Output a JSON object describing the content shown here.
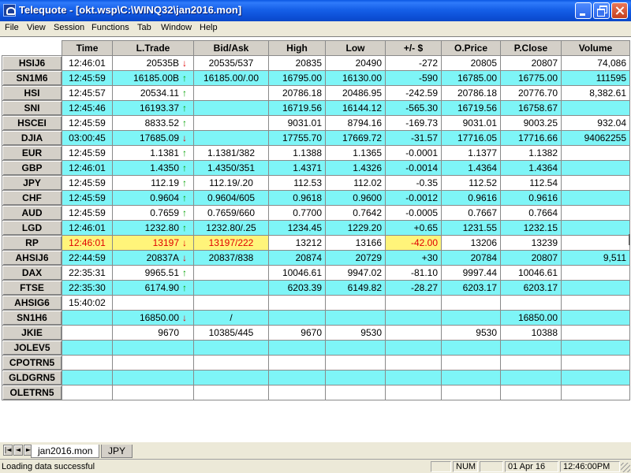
{
  "window": {
    "title": "Telequote - [okt.wsp\\C:\\WINQ32\\jan2016.mon]"
  },
  "menu": [
    "File",
    "View",
    "Session",
    "Functions",
    "Tab",
    "Window",
    "Help"
  ],
  "table": {
    "headers": [
      "Time",
      "L.Trade",
      "Bid/Ask",
      "High",
      "Low",
      "+/- $",
      "O.Price",
      "P.Close",
      "Volume"
    ],
    "rows": [
      {
        "symbol": "HSIJ6",
        "time": "12:46:01",
        "last": "20535B",
        "arrow": "down",
        "bidask": "20535/537",
        "high": "20835",
        "low": "20490",
        "change": "-272",
        "open": "20805",
        "pclose": "20807",
        "volume": "74,086",
        "bg": "white"
      },
      {
        "symbol": "SN1M6",
        "time": "12:45:59",
        "last": "16185.00B",
        "arrow": "up",
        "bidask": "16185.00/.00",
        "high": "16795.00",
        "low": "16130.00",
        "change": "-590",
        "open": "16785.00",
        "pclose": "16775.00",
        "volume": "111595",
        "bg": "cyan"
      },
      {
        "symbol": "HSI",
        "time": "12:45:57",
        "last": "20534.11",
        "arrow": "up",
        "bidask": "",
        "high": "20786.18",
        "low": "20486.95",
        "change": "-242.59",
        "open": "20786.18",
        "pclose": "20776.70",
        "volume": "8,382.61",
        "bg": "white"
      },
      {
        "symbol": "SNI",
        "time": "12:45:46",
        "last": "16193.37",
        "arrow": "up",
        "bidask": "",
        "high": "16719.56",
        "low": "16144.12",
        "change": "-565.30",
        "open": "16719.56",
        "pclose": "16758.67",
        "volume": "",
        "bg": "cyan"
      },
      {
        "symbol": "HSCEI",
        "time": "12:45:59",
        "last": "8833.52",
        "arrow": "up",
        "bidask": "",
        "high": "9031.01",
        "low": "8794.16",
        "change": "-169.73",
        "open": "9031.01",
        "pclose": "9003.25",
        "volume": "932.04",
        "bg": "white"
      },
      {
        "symbol": "DJIA",
        "time": "03:00:45",
        "last": "17685.09",
        "arrow": "down",
        "bidask": "",
        "high": "17755.70",
        "low": "17669.72",
        "change": "-31.57",
        "open": "17716.05",
        "pclose": "17716.66",
        "volume": "94062255",
        "bg": "cyan"
      },
      {
        "symbol": "EUR",
        "time": "12:45:59",
        "last": "1.1381",
        "arrow": "up",
        "bidask": "1.1381/382",
        "high": "1.1388",
        "low": "1.1365",
        "change": "-0.0001",
        "open": "1.1377",
        "pclose": "1.1382",
        "volume": "",
        "bg": "white"
      },
      {
        "symbol": "GBP",
        "time": "12:46:01",
        "last": "1.4350",
        "arrow": "up",
        "bidask": "1.4350/351",
        "high": "1.4371",
        "low": "1.4326",
        "change": "-0.0014",
        "open": "1.4364",
        "pclose": "1.4364",
        "volume": "",
        "bg": "cyan"
      },
      {
        "symbol": "JPY",
        "time": "12:45:59",
        "last": "112.19",
        "arrow": "up",
        "bidask": "112.19/.20",
        "high": "112.53",
        "low": "112.02",
        "change": "-0.35",
        "open": "112.52",
        "pclose": "112.54",
        "volume": "",
        "bg": "white"
      },
      {
        "symbol": "CHF",
        "time": "12:45:59",
        "last": "0.9604",
        "arrow": "up",
        "bidask": "0.9604/605",
        "high": "0.9618",
        "low": "0.9600",
        "change": "-0.0012",
        "open": "0.9616",
        "pclose": "0.9616",
        "volume": "",
        "bg": "cyan"
      },
      {
        "symbol": "AUD",
        "time": "12:45:59",
        "last": "0.7659",
        "arrow": "up",
        "bidask": "0.7659/660",
        "high": "0.7700",
        "low": "0.7642",
        "change": "-0.0005",
        "open": "0.7667",
        "pclose": "0.7664",
        "volume": "",
        "bg": "white"
      },
      {
        "symbol": "LGD",
        "time": "12:46:01",
        "last": "1232.80",
        "arrow": "up",
        "bidask": "1232.80/.25",
        "high": "1234.45",
        "low": "1229.20",
        "change": "+0.65",
        "open": "1231.55",
        "pclose": "1232.15",
        "volume": "",
        "bg": "cyan"
      },
      {
        "symbol": "RP",
        "time": "12:46:01",
        "last": "13197",
        "arrow": "down",
        "bidask": "13197/222",
        "high": "13212",
        "low": "13166",
        "change": "-42.00",
        "open": "13206",
        "pclose": "13239",
        "volume": "",
        "bg": "white",
        "highlight": [
          "time",
          "last",
          "bidask",
          "change"
        ]
      },
      {
        "symbol": "AHSIJ6",
        "time": "22:44:59",
        "last": "20837A",
        "arrow": "down",
        "bidask": "20837/838",
        "high": "20874",
        "low": "20729",
        "change": "+30",
        "open": "20784",
        "pclose": "20807",
        "volume": "9,511",
        "bg": "cyan"
      },
      {
        "symbol": "DAX",
        "time": "22:35:31",
        "last": "9965.51",
        "arrow": "up",
        "bidask": "",
        "high": "10046.61",
        "low": "9947.02",
        "change": "-81.10",
        "open": "9997.44",
        "pclose": "10046.61",
        "volume": "",
        "bg": "white"
      },
      {
        "symbol": "FTSE",
        "time": "22:35:30",
        "last": "6174.90",
        "arrow": "up",
        "bidask": "",
        "high": "6203.39",
        "low": "6149.82",
        "change": "-28.27",
        "open": "6203.17",
        "pclose": "6203.17",
        "volume": "",
        "bg": "cyan"
      },
      {
        "symbol": "AHSIG6",
        "time": "15:40:02",
        "last": "",
        "arrow": "",
        "bidask": "",
        "high": "",
        "low": "",
        "change": "",
        "open": "",
        "pclose": "",
        "volume": "",
        "bg": "white"
      },
      {
        "symbol": "SN1H6",
        "time": "",
        "last": "16850.00",
        "arrow": "down",
        "bidask": "/",
        "high": "",
        "low": "",
        "change": "",
        "open": "",
        "pclose": "16850.00",
        "volume": "",
        "bg": "cyan"
      },
      {
        "symbol": "JKIE",
        "time": "",
        "last": "9670",
        "arrow": "",
        "bidask": "10385/445",
        "high": "9670",
        "low": "9530",
        "change": "",
        "open": "9530",
        "pclose": "10388",
        "volume": "",
        "bg": "white"
      },
      {
        "symbol": "JOLEV5",
        "time": "",
        "last": "",
        "arrow": "",
        "bidask": "",
        "high": "",
        "low": "",
        "change": "",
        "open": "",
        "pclose": "",
        "volume": "",
        "bg": "cyan"
      },
      {
        "symbol": "CPOTRN5",
        "time": "",
        "last": "",
        "arrow": "",
        "bidask": "",
        "high": "",
        "low": "",
        "change": "",
        "open": "",
        "pclose": "",
        "volume": "",
        "bg": "white"
      },
      {
        "symbol": "GLDGRN5",
        "time": "",
        "last": "",
        "arrow": "",
        "bidask": "",
        "high": "",
        "low": "",
        "change": "",
        "open": "",
        "pclose": "",
        "volume": "",
        "bg": "cyan"
      },
      {
        "symbol": "OLETRN5",
        "time": "",
        "last": "",
        "arrow": "",
        "bidask": "",
        "high": "",
        "low": "",
        "change": "",
        "open": "",
        "pclose": "",
        "volume": "",
        "bg": "white"
      }
    ]
  },
  "tabs": [
    {
      "label": "jan2016.mon",
      "active": true
    },
    {
      "label": "JPY",
      "active": false
    }
  ],
  "status": {
    "message": "Loading data successful",
    "num": "NUM",
    "date": "01 Apr 16",
    "time": "12:46:00PM"
  },
  "colors": {
    "title_bar": "#0a56e2",
    "row_cyan": "#7ef5f7",
    "highlight_bg": "#fff47a",
    "highlight_text": "#e00000",
    "arrow_up": "#00a000",
    "arrow_down": "#e00000"
  },
  "icons": {
    "app": "telequote-app-icon",
    "arrow_up": "↑",
    "arrow_down": "↓",
    "tab_first": "|◄",
    "tab_prev": "◄",
    "tab_next": "►",
    "tab_last": "►|"
  }
}
